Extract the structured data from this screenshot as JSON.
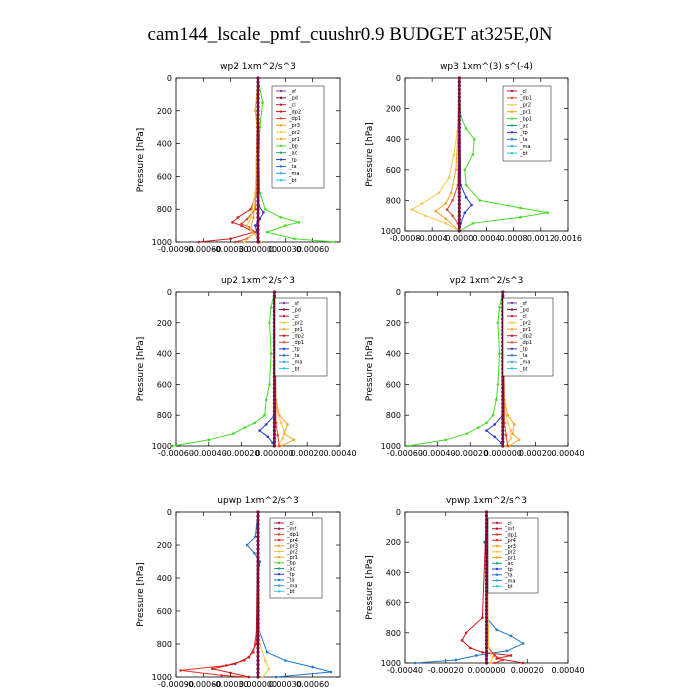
{
  "figure": {
    "title": "cam144_lscale_pmf_cuushr0.9  BUDGET at325E,0N",
    "ylabel": "Pressure [hPa]"
  },
  "colors": {
    "sf": "#7b3fa0",
    "pd": "#7a0e40",
    "cl": "#c21d3a",
    "dp2": "#c81e1e",
    "dp1": "#e0472a",
    "pr3": "#f0a020",
    "pr2": "#f7c748",
    "pr1": "#f5a623",
    "bp": "#44dd22",
    "ac": "#15a37a",
    "tp": "#2a3fd0",
    "ta": "#1f78d1",
    "ma": "#33a0e8",
    "bt": "#28c8e8",
    "mf": "#aa1133",
    "pr4": "#ee3322"
  },
  "chart_data": [
    {
      "id": "wp2",
      "type": "line",
      "title": "wp2   1xm^2/s^3",
      "xlim": [
        -0.0009,
        0.0009
      ],
      "ylim": [
        1000,
        0
      ],
      "xticks": [
        "-0.00090",
        "-0.00060",
        "-0.00030",
        "0.000000",
        "0.00030",
        "0.00060"
      ],
      "xtickvals": [
        -0.0009,
        -0.0006,
        -0.0003,
        0.0,
        0.0003,
        0.0006
      ],
      "yticks": [
        0,
        200,
        400,
        600,
        800,
        1000
      ],
      "legend": [
        "_sf",
        "_pd",
        "_cl",
        "_dp2",
        "_dp1",
        "_pr3",
        "_pr2",
        "_pr1",
        "_bp",
        "_ac",
        "_tp",
        "_ta",
        "_ma",
        "_bt"
      ],
      "series": [
        {
          "name": "_bp",
          "color": "#44dd22",
          "p": [
            0,
            150,
            300,
            500,
            700,
            800,
            850,
            880,
            900,
            940,
            980,
            1000
          ],
          "v": [
            0,
            5e-05,
            2e-05,
            1e-05,
            2e-05,
            8e-05,
            0.00025,
            0.00045,
            0.0003,
            0.0001,
            0.0004,
            0.00085
          ]
        },
        {
          "name": "_dp2",
          "color": "#c81e1e",
          "p": [
            0,
            700,
            800,
            850,
            880,
            900,
            940,
            980,
            1000
          ],
          "v": [
            0,
            -1e-05,
            -8e-05,
            -0.00022,
            -0.00028,
            -0.00018,
            -5e-05,
            -0.0003,
            -0.00065
          ]
        },
        {
          "name": "_dp1",
          "color": "#e0472a",
          "p": [
            0,
            800,
            860,
            890,
            910,
            940,
            980,
            1000
          ],
          "v": [
            0,
            -3e-05,
            -0.00012,
            -0.00018,
            -0.0001,
            -3e-05,
            -0.00012,
            -0.00025
          ]
        },
        {
          "name": "_pr2",
          "color": "#f7c748",
          "p": [
            0,
            400,
            700,
            850,
            900,
            950,
            1000
          ],
          "v": [
            0,
            -1e-05,
            -3e-05,
            -8e-05,
            -0.00012,
            -5e-05,
            -0.00015
          ]
        },
        {
          "name": "_pr1",
          "color": "#f5a623",
          "p": [
            0,
            200,
            300,
            700,
            850,
            920,
            1000
          ],
          "v": [
            0,
            -3e-05,
            -1e-05,
            -2e-05,
            -5e-05,
            -8e-05,
            3e-05
          ]
        },
        {
          "name": "_tp",
          "color": "#2a3fd0",
          "p": [
            0,
            780,
            820,
            860,
            900,
            1000
          ],
          "v": [
            0,
            1e-05,
            6e-05,
            2e-05,
            -3e-05,
            1e-05
          ]
        },
        {
          "name": "_pd",
          "color": "#7a0e40",
          "p": [
            0,
            1000
          ],
          "v": [
            0,
            0
          ]
        }
      ]
    },
    {
      "id": "wp3",
      "type": "line",
      "title": "wp3   1xm^(3) s^(-4)",
      "xlim": [
        -0.0008,
        0.0016
      ],
      "ylim": [
        1000,
        0
      ],
      "xticks": [
        "-0.0008",
        "-0.0004",
        "0.0000",
        "0.0004",
        "0.0008",
        "0.0012",
        "0.0016"
      ],
      "xtickvals": [
        -0.0008,
        -0.0004,
        0.0,
        0.0004,
        0.0008,
        0.0012,
        0.0016
      ],
      "yticks": [
        0,
        200,
        400,
        600,
        800,
        1000
      ],
      "legend": [
        "_cl",
        "_dp1",
        "_pr2",
        "_pr1",
        "_bp1",
        "_ac",
        "_tp",
        "_ta",
        "_ma",
        "_bt"
      ],
      "series": [
        {
          "name": "_bp1",
          "color": "#44dd22",
          "p": [
            0,
            250,
            330,
            400,
            500,
            600,
            700,
            800,
            850,
            880,
            910,
            950,
            1000
          ],
          "v": [
            0,
            2e-05,
            0.0001,
            0.00022,
            0.0002,
            8e-05,
            0.0001,
            0.0003,
            0.0009,
            0.0013,
            0.0009,
            0.0002,
            0.0
          ]
        },
        {
          "name": "_pr2",
          "color": "#f7c748",
          "p": [
            0,
            350,
            500,
            650,
            750,
            820,
            860,
            900,
            950,
            1000
          ],
          "v": [
            0,
            -3e-05,
            -8e-05,
            -0.00015,
            -0.0003,
            -0.00055,
            -0.0007,
            -0.0005,
            -0.0002,
            0.0
          ]
        },
        {
          "name": "_pr1",
          "color": "#f5a623",
          "p": [
            0,
            350,
            600,
            750,
            820,
            870,
            920,
            1000
          ],
          "v": [
            0,
            -2e-05,
            -5e-05,
            -0.00012,
            -0.0002,
            -0.00035,
            -0.0002,
            0.0
          ]
        },
        {
          "name": "_dp1",
          "color": "#e0472a",
          "p": [
            0,
            700,
            800,
            860,
            900,
            950,
            1000
          ],
          "v": [
            0,
            -2e-05,
            -0.0001,
            -0.00018,
            -0.0001,
            -2e-05,
            0.0
          ]
        },
        {
          "name": "_tp",
          "color": "#2a3fd0",
          "p": [
            0,
            700,
            780,
            830,
            880,
            950,
            1000
          ],
          "v": [
            0,
            2e-05,
            0.0001,
            0.00018,
            8e-05,
            2e-05,
            0.0
          ]
        },
        {
          "name": "_cl",
          "color": "#7a0e40",
          "p": [
            0,
            1000
          ],
          "v": [
            0,
            0
          ]
        }
      ]
    },
    {
      "id": "up2",
      "type": "line",
      "title": "up2   1xm^2/s^3",
      "xlim": [
        -0.0006,
        0.0004
      ],
      "ylim": [
        1000,
        0
      ],
      "xticks": [
        "-0.00060",
        "-0.00040",
        "-0.00020",
        "0.000000",
        "0.00020",
        "0.00040"
      ],
      "xtickvals": [
        -0.0006,
        -0.0004,
        -0.0002,
        0.0,
        0.0002,
        0.0004
      ],
      "yticks": [
        0,
        200,
        400,
        600,
        800,
        1000
      ],
      "legend": [
        "_sf",
        "_pd",
        "_cl",
        "_pr2",
        "_pr1",
        "_dp2",
        "_dp1",
        "_tp",
        "_ta",
        "_ma",
        "_bt"
      ],
      "series": [
        {
          "name": "_dp2",
          "color": "#44dd22",
          "p": [
            0,
            100,
            200,
            400,
            600,
            700,
            800,
            850,
            880,
            920,
            960,
            1000
          ],
          "v": [
            0,
            -2e-05,
            -3e-05,
            -2e-05,
            -3e-05,
            -5e-05,
            -6e-05,
            -0.00012,
            -0.00018,
            -0.00025,
            -0.0004,
            -0.00062
          ]
        },
        {
          "name": "_tp",
          "color": "#2a3fd0",
          "p": [
            0,
            800,
            860,
            900,
            940,
            980,
            1000
          ],
          "v": [
            0,
            0.0,
            -5e-05,
            -9e-05,
            -4e-05,
            -1e-05,
            0.0
          ]
        },
        {
          "name": "_pr1",
          "color": "#f5a623",
          "p": [
            0,
            700,
            800,
            860,
            920,
            960,
            1000
          ],
          "v": [
            0,
            1e-05,
            3e-05,
            8e-05,
            6e-05,
            0.00012,
            4e-05
          ]
        },
        {
          "name": "_pr2",
          "color": "#f7c748",
          "p": [
            0,
            750,
            850,
            900,
            950,
            1000
          ],
          "v": [
            0,
            1e-05,
            4e-05,
            6e-05,
            5e-05,
            2e-05
          ]
        },
        {
          "name": "_dp1",
          "color": "#e0472a",
          "p": [
            0,
            850,
            930,
            1000
          ],
          "v": [
            0,
            1e-05,
            2e-05,
            3e-05
          ]
        },
        {
          "name": "_pd",
          "color": "#7a0e40",
          "p": [
            0,
            1000
          ],
          "v": [
            0,
            0
          ]
        }
      ]
    },
    {
      "id": "vp2",
      "type": "line",
      "title": "vp2   1xm^2/s^3",
      "xlim": [
        -0.0006,
        0.0004
      ],
      "ylim": [
        1000,
        0
      ],
      "xticks": [
        "-0.00060",
        "-0.00040",
        "-0.00020",
        "0.000000",
        "0.00020",
        "0.00040"
      ],
      "xtickvals": [
        -0.0006,
        -0.0004,
        -0.0002,
        0.0,
        0.0002,
        0.0004
      ],
      "yticks": [
        0,
        200,
        400,
        600,
        800,
        1000
      ],
      "legend": [
        "_sf",
        "_pd",
        "_cl",
        "_pr2",
        "_pr1",
        "_dp2",
        "_dp1",
        "_tp",
        "_ta",
        "_ma",
        "_bt"
      ],
      "series": [
        {
          "name": "_dp2",
          "color": "#44dd22",
          "p": [
            0,
            100,
            200,
            400,
            600,
            700,
            800,
            850,
            880,
            920,
            960,
            1000
          ],
          "v": [
            0,
            -2e-05,
            -3e-05,
            -2e-05,
            -3e-05,
            -4e-05,
            -6e-05,
            -0.0001,
            -0.00015,
            -0.00022,
            -0.00035,
            -0.00058
          ]
        },
        {
          "name": "_tp",
          "color": "#2a3fd0",
          "p": [
            0,
            800,
            860,
            900,
            940,
            980,
            1000
          ],
          "v": [
            0,
            0.0,
            -5e-05,
            -0.0001,
            -5e-05,
            -1e-05,
            0.0
          ]
        },
        {
          "name": "_pr1",
          "color": "#f5a623",
          "p": [
            0,
            700,
            800,
            860,
            920,
            960,
            1000
          ],
          "v": [
            0,
            1e-05,
            3e-05,
            7e-05,
            6e-05,
            0.0001,
            4e-05
          ]
        },
        {
          "name": "_pr2",
          "color": "#f7c748",
          "p": [
            0,
            750,
            850,
            900,
            950,
            1000
          ],
          "v": [
            0,
            1e-05,
            3e-05,
            5e-05,
            5e-05,
            2e-05
          ]
        },
        {
          "name": "_dp1",
          "color": "#e0472a",
          "p": [
            0,
            850,
            930,
            1000
          ],
          "v": [
            0,
            1e-05,
            2e-05,
            3e-05
          ]
        },
        {
          "name": "_pd",
          "color": "#7a0e40",
          "p": [
            0,
            1000
          ],
          "v": [
            0,
            0
          ]
        }
      ]
    },
    {
      "id": "upwp",
      "type": "line",
      "title": "upwp   1xm^2/s^3",
      "xlim": [
        -0.0009,
        0.0009
      ],
      "ylim": [
        1000,
        0
      ],
      "xticks": [
        "-0.00090",
        "-0.00060",
        "-0.00030",
        "0.000000",
        "0.00030",
        "0.00060"
      ],
      "xtickvals": [
        -0.0009,
        -0.0006,
        -0.0003,
        0.0,
        0.0003,
        0.0006
      ],
      "yticks": [
        0,
        200,
        400,
        600,
        800,
        1000
      ],
      "legend": [
        "_cl",
        "_mf",
        "_dp1",
        "_pr4",
        "_pr3",
        "_pr2",
        "_pr1",
        "_bp",
        "_ac",
        "_tp",
        "_ta",
        "_ma",
        "_bt"
      ],
      "series": [
        {
          "name": "_ta",
          "color": "#1f78d1",
          "p": [
            0,
            150,
            200,
            250,
            300,
            400,
            700,
            850,
            900,
            940,
            970,
            1000
          ],
          "v": [
            0,
            -3e-05,
            -0.00012,
            -4e-05,
            2e-05,
            0.0,
            0.0,
            0.0001,
            0.0003,
            0.0006,
            0.0008,
            0.0002
          ]
        },
        {
          "name": "_pr4",
          "color": "#ee3322",
          "p": [
            0,
            700,
            850,
            900,
            930,
            960,
            990,
            1000
          ],
          "v": [
            0,
            -1e-05,
            -5e-05,
            -0.00015,
            -0.00035,
            -0.00085,
            -0.0004,
            -0.0001
          ]
        },
        {
          "name": "_dp1",
          "color": "#c81e1e",
          "p": [
            0,
            800,
            880,
            920,
            950,
            975,
            1000
          ],
          "v": [
            0,
            -2e-05,
            -0.0001,
            -0.00025,
            -0.0005,
            -0.0003,
            -0.0001
          ]
        },
        {
          "name": "_pr2",
          "color": "#f7c748",
          "p": [
            0,
            800,
            900,
            950,
            1000
          ],
          "v": [
            0,
            2e-05,
            8e-05,
            0.00012,
            5e-05
          ]
        },
        {
          "name": "_mf",
          "color": "#7a0e40",
          "p": [
            0,
            1000
          ],
          "v": [
            0,
            0
          ]
        }
      ]
    },
    {
      "id": "vpwp",
      "type": "line",
      "title": "vpwp   1xm^2/s^3",
      "xlim": [
        -0.0004,
        0.0004
      ],
      "ylim": [
        1000,
        0
      ],
      "xticks": [
        "-0.00040",
        "-0.00020",
        "0.000000",
        "0.00020",
        "0.00040"
      ],
      "xtickvals": [
        -0.0004,
        -0.0002,
        0.0,
        0.0002,
        0.0004
      ],
      "yticks": [
        0,
        200,
        400,
        600,
        800,
        1000
      ],
      "legend": [
        "_cl",
        "_mf",
        "_dp1",
        "_pr4",
        "_pr3",
        "_pr2",
        "_pr1",
        "_ac",
        "_tp",
        "_ta",
        "_ma",
        "_bt"
      ],
      "series": [
        {
          "name": "_ta",
          "color": "#1f78d1",
          "p": [
            0,
            150,
            200,
            260,
            300,
            700,
            780,
            820,
            870,
            920,
            950,
            980,
            1000
          ],
          "v": [
            0,
            1e-05,
            -1e-05,
            1e-05,
            0.0,
            0.0,
            5e-05,
            0.00012,
            0.00018,
            0.0001,
            -5e-05,
            -0.00015,
            -0.00035
          ]
        },
        {
          "name": "_dp1",
          "color": "#c81e1e",
          "p": [
            0,
            700,
            800,
            850,
            900,
            930,
            950,
            970,
            1000
          ],
          "v": [
            0,
            -2e-05,
            -0.0001,
            -0.00012,
            -8e-05,
            -2e-05,
            0.00012,
            5e-05,
            0.00018
          ]
        },
        {
          "name": "_pr4",
          "color": "#ee3322",
          "p": [
            0,
            900,
            950,
            980,
            1000
          ],
          "v": [
            0,
            1e-05,
            4e-05,
            8e-05,
            4e-05
          ]
        },
        {
          "name": "_pr2",
          "color": "#f7c748",
          "p": [
            0,
            900,
            960,
            1000
          ],
          "v": [
            0,
            1e-05,
            3e-05,
            2e-05
          ]
        },
        {
          "name": "_mf",
          "color": "#7a0e40",
          "p": [
            0,
            1000
          ],
          "v": [
            0,
            0
          ]
        }
      ]
    }
  ]
}
